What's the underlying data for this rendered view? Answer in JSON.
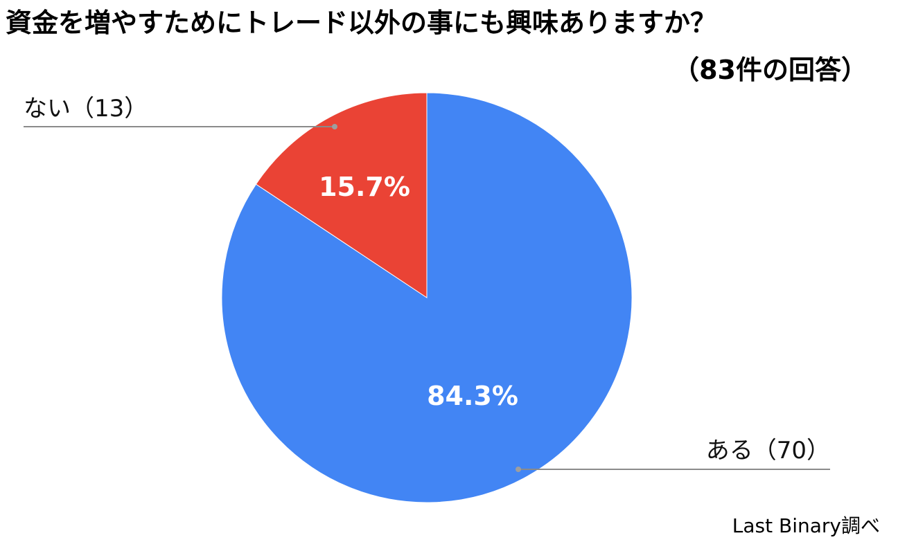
{
  "chart_data": {
    "type": "pie",
    "title": "資金を増やすためにトレード以外の事にも興味ありますか？",
    "subtitle": "（83件の回答）",
    "slices": [
      {
        "label": "ある（70）",
        "value": 70,
        "percent_label": "84.3%",
        "color": "#4285f4"
      },
      {
        "label": "ない（13）",
        "value": 13,
        "percent_label": "15.7%",
        "color": "#ea4335"
      }
    ],
    "legend": "none",
    "source": "Last Binary調べ"
  }
}
